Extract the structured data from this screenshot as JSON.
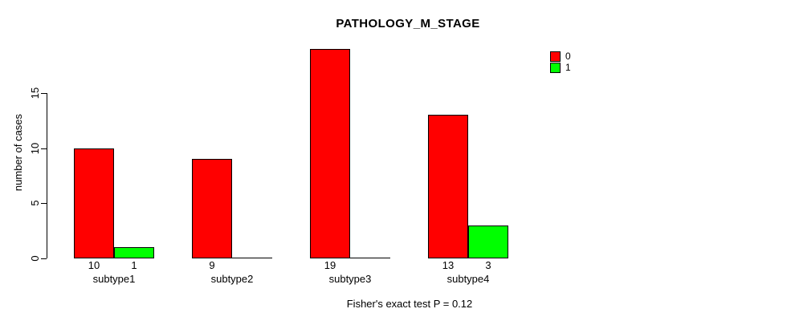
{
  "chart_data": {
    "type": "bar",
    "title": "PATHOLOGY_M_STAGE",
    "ylabel": "number of cases",
    "xlabel": "",
    "categories": [
      "subtype1",
      "subtype2",
      "subtype3",
      "subtype4"
    ],
    "series": [
      {
        "name": "0",
        "color": "#ff0000",
        "values": [
          10,
          9,
          19,
          13
        ]
      },
      {
        "name": "1",
        "color": "#00ff00",
        "values": [
          1,
          0,
          0,
          3
        ]
      }
    ],
    "yticks": [
      0,
      5,
      10,
      15
    ],
    "ylim": [
      0,
      15
    ],
    "grid": false,
    "legend_position": "top-right",
    "bar_value_labels": [
      [
        "10",
        "1"
      ],
      [
        "9",
        ""
      ],
      [
        "19",
        ""
      ],
      [
        "13",
        "3"
      ]
    ],
    "caption": "Fisher's exact test P = 0.12",
    "axis_color": "#000000",
    "background_color": "#ffffff"
  }
}
